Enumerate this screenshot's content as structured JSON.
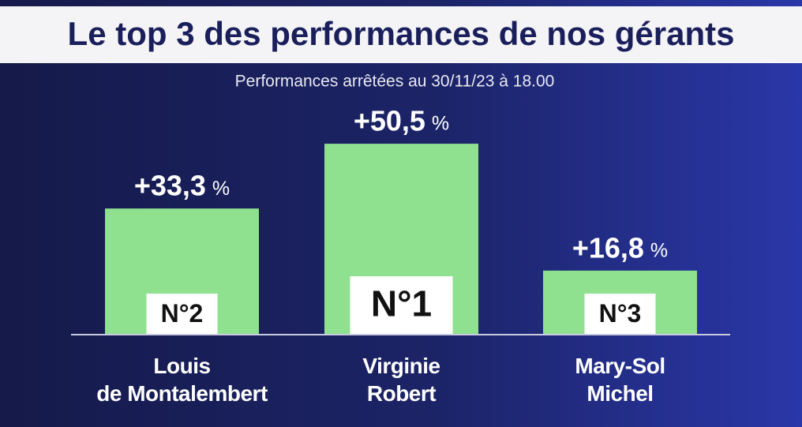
{
  "chart_data": {
    "type": "bar",
    "title": "Le top 3 des performances de nos gérants",
    "subtitle": "Performances arrêtées au 30/11/23 à 18.00",
    "categories": [
      "Louis\nde Montalembert",
      "Virginie\nRobert",
      "Mary-Sol\nMichel"
    ],
    "values": [
      33.3,
      50.5,
      16.8
    ],
    "value_labels": [
      "+33,3",
      "+50,5",
      "+16,8"
    ],
    "unit": "%",
    "ranks": [
      "N°2",
      "N°1",
      "N°3"
    ],
    "color": "#8fe08f"
  }
}
